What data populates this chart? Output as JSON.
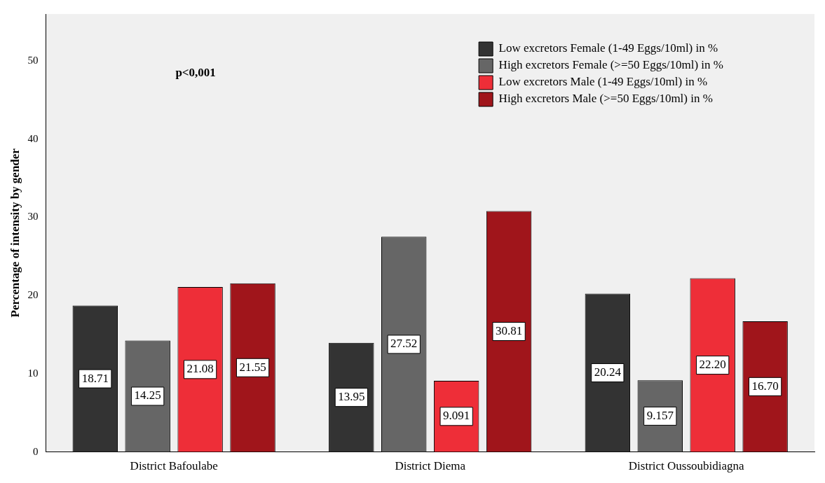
{
  "chart_data": {
    "type": "bar",
    "ylabel": "Percentage of intensity by gender",
    "categories": [
      "District Bafoulabe",
      "District Diema",
      "District Oussoubidiagna"
    ],
    "series": [
      {
        "name": "Low excretors Female (1-49 Eggs/10ml) in %",
        "color": "#333333",
        "values": [
          18.71,
          13.95,
          20.24
        ],
        "value_labels": [
          "18.71",
          "13.95",
          "20.24"
        ]
      },
      {
        "name": "High excretors Female (>=50 Eggs/10ml) in %",
        "color": "#666666",
        "values": [
          14.25,
          27.52,
          9.157
        ],
        "value_labels": [
          "14.25",
          "27.52",
          "9.157"
        ]
      },
      {
        "name": "Low excretors Male (1-49 Eggs/10ml) in %",
        "color": "#ee2e38",
        "values": [
          21.08,
          9.091,
          22.2
        ],
        "value_labels": [
          "21.08",
          "9.091",
          "22.20"
        ]
      },
      {
        "name": "High excretors Male (>=50 Eggs/10ml) in %",
        "color": "#a0151b",
        "values": [
          21.55,
          30.81,
          16.7
        ],
        "value_labels": [
          "21.55",
          "30.81",
          "16.70"
        ]
      }
    ],
    "ylim": [
      0,
      56
    ],
    "yticks": [
      0,
      10,
      20,
      30,
      40,
      50
    ],
    "grid": false,
    "legend": "top right",
    "annotations": [
      "p<0,001"
    ]
  }
}
